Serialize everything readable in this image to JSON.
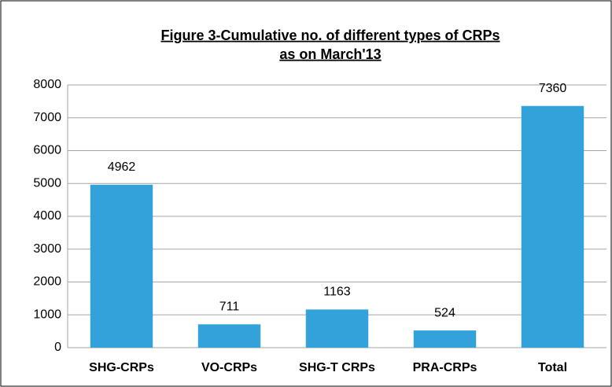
{
  "chart_data": {
    "type": "bar",
    "title": [
      "Figure 3-Cumulative no. of  different types of CRPs",
      "as on March'13"
    ],
    "categories": [
      "SHG-CRPs",
      "VO-CRPs",
      "SHG-T CRPs",
      "PRA-CRPs",
      "Total"
    ],
    "values": [
      4962,
      711,
      1163,
      524,
      7360
    ],
    "color": "#33a2da",
    "ylim": [
      0,
      8000
    ],
    "yticks": [
      0,
      1000,
      2000,
      3000,
      4000,
      5000,
      6000,
      7000,
      8000
    ],
    "grid": true
  }
}
